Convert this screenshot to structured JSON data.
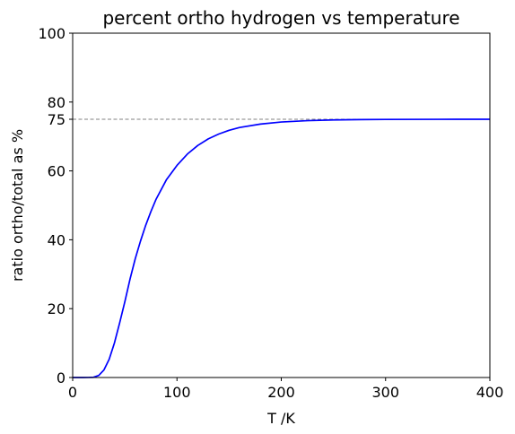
{
  "chart_data": {
    "type": "line",
    "title": "percent ortho hydrogen vs temperature",
    "xlabel": "T /K",
    "ylabel": "ratio ortho/total as %",
    "xlim": [
      0,
      400
    ],
    "ylim": [
      0,
      100
    ],
    "x_ticks": [
      0,
      100,
      200,
      300,
      400
    ],
    "y_ticks": [
      0,
      20,
      40,
      60,
      75,
      80,
      100
    ],
    "grid": false,
    "series": [
      {
        "color": "#0000ff",
        "style": "solid",
        "x": [
          0,
          10,
          15,
          20,
          25,
          30,
          35,
          40,
          45,
          50,
          55,
          60,
          65,
          70,
          75,
          80,
          90,
          100,
          110,
          120,
          130,
          140,
          150,
          160,
          180,
          200,
          225,
          250,
          275,
          300,
          350,
          400
        ],
        "y": [
          0,
          0,
          0.01,
          0.07,
          0.6,
          2.2,
          5.3,
          10.0,
          15.8,
          22.0,
          28.6,
          34.5,
          39.6,
          44.2,
          48.2,
          51.8,
          57.5,
          61.6,
          64.9,
          67.4,
          69.3,
          70.7,
          71.8,
          72.6,
          73.6,
          74.2,
          74.6,
          74.8,
          74.9,
          74.95,
          74.99,
          75.0
        ]
      }
    ],
    "reference_lines": [
      {
        "axis": "y",
        "value": 75,
        "color": "#808080",
        "style": "dashed"
      }
    ]
  }
}
